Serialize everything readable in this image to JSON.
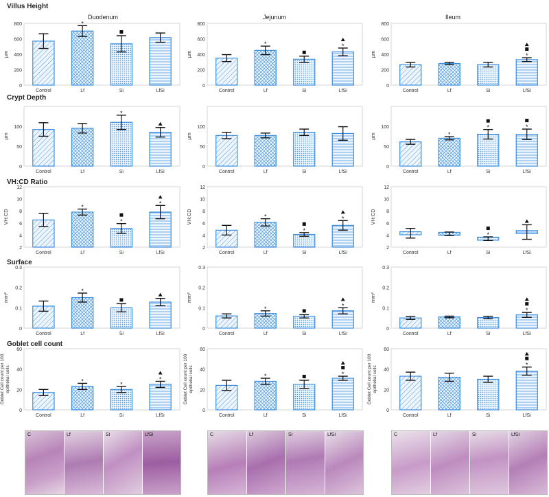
{
  "rows": [
    {
      "title": "Villus Height",
      "ylabel": "µm",
      "ylim": [
        0,
        800
      ],
      "ticks": [
        0,
        200,
        400,
        600,
        800
      ]
    },
    {
      "title": "Crypt Depth",
      "ylabel": "µm",
      "ylim": [
        0,
        150
      ],
      "ticks": [
        0,
        50,
        100
      ],
      "tick_max_label": 150
    },
    {
      "title": "VH:CD Ratio",
      "ylabel": "VH:CD",
      "ylim": [
        2,
        12
      ],
      "ticks": [
        2,
        4,
        6,
        8,
        10,
        12
      ]
    },
    {
      "title": "Surface",
      "ylabel": "mm²",
      "ylim": [
        0,
        0.3
      ],
      "ticks": [
        0,
        0.1,
        0.2,
        0.3
      ]
    },
    {
      "title": "Goblet cell count",
      "ylabel": "Goblet Cell count per 100 epithelial cells",
      "ylim": [
        0,
        60
      ],
      "ticks": [
        0,
        20,
        40,
        60
      ]
    }
  ],
  "columns": [
    "Duodenum",
    "Jejunum",
    "Ileum"
  ],
  "categories": [
    "Control",
    "Lf",
    "Si",
    "LfSi"
  ],
  "colors": {
    "bar_edge": "#3b8ee0",
    "bar_fill": "#cfe3f7",
    "axis": "#999999",
    "grid": "#e6e6e6"
  },
  "chart_data": [
    {
      "type": "bar",
      "row": 0,
      "col": 0,
      "values": [
        570,
        700,
        535,
        615
      ],
      "err": [
        95,
        70,
        105,
        60
      ],
      "marks": [
        [],
        [
          "*"
        ],
        [
          "sq"
        ],
        []
      ]
    },
    {
      "type": "bar",
      "row": 0,
      "col": 1,
      "values": [
        350,
        450,
        335,
        430
      ],
      "err": [
        45,
        55,
        40,
        50
      ],
      "marks": [
        [],
        [
          "*"
        ],
        [
          "sq"
        ],
        [
          "tri",
          "*"
        ]
      ]
    },
    {
      "type": "bar",
      "row": 0,
      "col": 2,
      "values": [
        265,
        280,
        265,
        330
      ],
      "err": [
        30,
        15,
        30,
        25
      ],
      "marks": [
        [],
        [],
        [],
        [
          "tri",
          "sq",
          "*"
        ]
      ]
    },
    {
      "type": "bar",
      "row": 1,
      "col": 0,
      "values": [
        92,
        95,
        110,
        85
      ],
      "err": [
        17,
        12,
        18,
        12
      ],
      "marks": [
        [],
        [],
        [
          "*"
        ],
        [
          "tri"
        ]
      ]
    },
    {
      "type": "bar",
      "row": 1,
      "col": 1,
      "values": [
        77,
        77,
        85,
        82
      ],
      "err": [
        8,
        6,
        8,
        17
      ],
      "marks": [
        [],
        [],
        [],
        []
      ]
    },
    {
      "type": "bar",
      "row": 1,
      "col": 2,
      "values": [
        61,
        70,
        80,
        80
      ],
      "err": [
        6,
        4,
        12,
        13
      ],
      "marks": [
        [],
        [
          "*"
        ],
        [
          "sq",
          "*"
        ],
        [
          "sq",
          "*"
        ]
      ]
    },
    {
      "type": "bar",
      "row": 2,
      "col": 0,
      "values": [
        6.5,
        7.8,
        5.1,
        7.8
      ],
      "err": [
        1.1,
        0.5,
        0.8,
        1.1
      ],
      "marks": [
        [],
        [
          "*"
        ],
        [
          "sq",
          "*"
        ],
        [
          "tri",
          "*"
        ]
      ]
    },
    {
      "type": "bar",
      "row": 2,
      "col": 1,
      "values": [
        4.8,
        6.1,
        4.1,
        5.6
      ],
      "err": [
        0.8,
        0.6,
        0.3,
        0.8
      ],
      "marks": [
        [],
        [
          "*"
        ],
        [
          "sq",
          "*"
        ],
        [
          "tri",
          "*"
        ]
      ]
    },
    {
      "type": "bar",
      "row": 2,
      "col": 2,
      "values": [
        4.3,
        4.2,
        3.4,
        4.5
      ],
      "err": [
        0.8,
        0.3,
        0.3,
        1.2
      ],
      "marks": [
        [],
        [],
        [
          "sq",
          "*"
        ],
        [
          "tri"
        ]
      ],
      "style": "box"
    },
    {
      "type": "bar",
      "row": 3,
      "col": 0,
      "values": [
        0.108,
        0.15,
        0.1,
        0.128
      ],
      "err": [
        0.025,
        0.022,
        0.02,
        0.018
      ],
      "marks": [
        [],
        [
          "*"
        ],
        [
          "sq"
        ],
        [
          "tri"
        ]
      ]
    },
    {
      "type": "bar",
      "row": 3,
      "col": 1,
      "values": [
        0.06,
        0.072,
        0.058,
        0.085
      ],
      "err": [
        0.01,
        0.013,
        0.008,
        0.015
      ],
      "marks": [
        [],
        [
          "*"
        ],
        [
          "sq"
        ],
        [
          "tri",
          "*"
        ]
      ]
    },
    {
      "type": "bar",
      "row": 3,
      "col": 2,
      "values": [
        0.05,
        0.055,
        0.052,
        0.065
      ],
      "err": [
        0.007,
        0.004,
        0.006,
        0.012
      ],
      "marks": [
        [],
        [],
        [],
        [
          "tri",
          "sq",
          "*"
        ]
      ]
    },
    {
      "type": "bar",
      "row": 4,
      "col": 0,
      "values": [
        17,
        23,
        20,
        25
      ],
      "err": [
        3,
        3,
        3,
        3
      ],
      "marks": [
        [],
        [
          "*"
        ],
        [
          "*"
        ],
        [
          "tri",
          "*"
        ]
      ]
    },
    {
      "type": "bar",
      "row": 4,
      "col": 1,
      "values": [
        24,
        28,
        25,
        31
      ],
      "err": [
        5,
        3,
        4,
        2
      ],
      "marks": [
        [],
        [
          "*"
        ],
        [
          "sq"
        ],
        [
          "tri",
          "sq",
          "*"
        ]
      ]
    },
    {
      "type": "bar",
      "row": 4,
      "col": 2,
      "values": [
        33,
        32,
        30,
        38
      ],
      "err": [
        4,
        4,
        3,
        4
      ],
      "marks": [
        [],
        [],
        [],
        [
          "tri",
          "sq",
          "*"
        ]
      ]
    }
  ],
  "micrographs": [
    {
      "labels": [
        "C",
        "Lf",
        "Si",
        "LfSi"
      ]
    },
    {
      "labels": [
        "C",
        "Lf",
        "Si",
        "LfSi"
      ]
    },
    {
      "labels": [
        "C",
        "Lf",
        "Si",
        "LfSi"
      ]
    }
  ]
}
